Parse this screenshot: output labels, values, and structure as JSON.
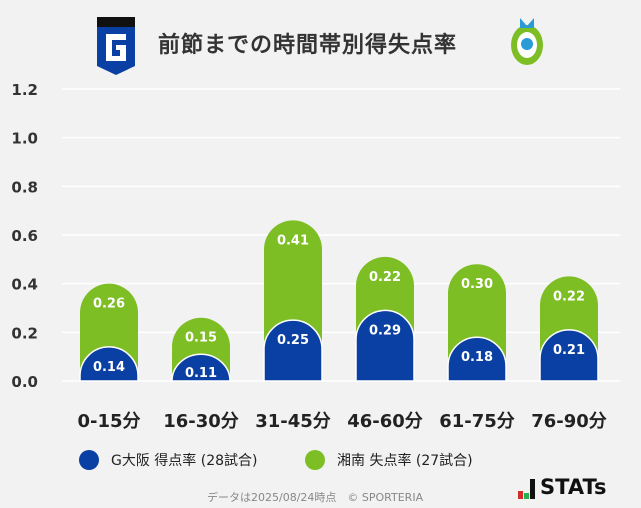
{
  "title": "前節までの時間帯別得失点率",
  "logos": {
    "left": "gamba-osaka-emblem",
    "right": "shonan-bellmare-emblem"
  },
  "legend": [
    {
      "label": "G大阪 得点率 (28試合)",
      "color": "#0a3fa3"
    },
    {
      "label": "湘南 失点率 (27試合)",
      "color": "#7dbe24"
    }
  ],
  "footer": {
    "note": "データは2025/08/24時点　© SPORTERIA",
    "brand": "STATs"
  },
  "chart_data": {
    "type": "bar",
    "stacked": true,
    "categories": [
      "0-15分",
      "16-30分",
      "31-45分",
      "46-60分",
      "61-75分",
      "76-90分"
    ],
    "series": [
      {
        "name": "G大阪 得点率 (28試合)",
        "color": "#0a3fa3",
        "values": [
          0.14,
          0.11,
          0.25,
          0.29,
          0.18,
          0.21
        ]
      },
      {
        "name": "湘南 失点率 (27試合)",
        "color": "#7dbe24",
        "values": [
          0.26,
          0.15,
          0.41,
          0.22,
          0.3,
          0.22
        ]
      }
    ],
    "ylim": [
      0,
      1.2
    ],
    "yticks": [
      "0.0",
      "0.2",
      "0.4",
      "0.6",
      "0.8",
      "1.0",
      "1.2"
    ],
    "grid": true,
    "legend_position": "bottom"
  }
}
